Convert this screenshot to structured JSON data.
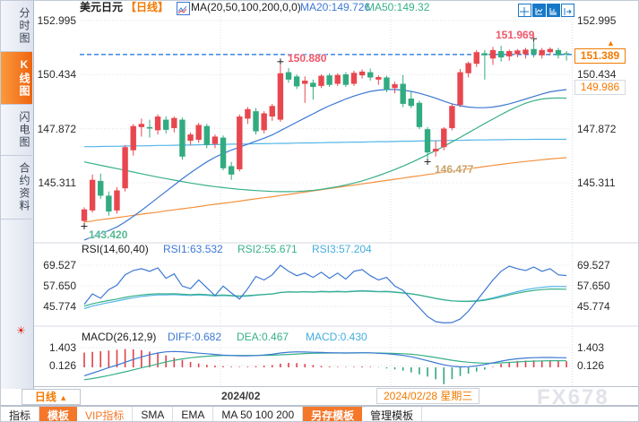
{
  "sidebar": {
    "items": [
      {
        "label": "分时图",
        "active": false
      },
      {
        "label": "K线图",
        "active": true
      },
      {
        "label": "闪电图",
        "active": false
      },
      {
        "label": "合约资料",
        "active": false
      }
    ],
    "alert_icon": "sun-icon"
  },
  "header": {
    "title": "美元日元",
    "period_tag": "【日线】",
    "ma_settings": "MA(20,50,100,200,0,0)",
    "ma20_label": "MA20:149.726",
    "ma50_label": "MA50:149.32",
    "icons": [
      "crosshair-icon",
      "zoom-axis-icon",
      "pane-chart-icon",
      "next-page-icon"
    ]
  },
  "sub_headers": {
    "rsi": {
      "title": "RSI(14,60,40)",
      "rsi1": "RSI1:63.532",
      "rsi2": "RSI2:55.671",
      "rsi3": "RSI3:57.204"
    },
    "macd": {
      "title": "MACD(26,12,9)",
      "diff": "DIFF:0.682",
      "dea": "DEA:0.467",
      "macd": "MACD:0.430"
    }
  },
  "price_tags": {
    "current": "151.389",
    "prev_close": "149.986"
  },
  "xaxis": {
    "period_label": "日线",
    "period_arrow": "▲",
    "month_label": "2024/02",
    "date_label": "2024/02/28 星期三"
  },
  "toolbar": {
    "items": [
      {
        "label": "指标",
        "style": "plain"
      },
      {
        "label": "模板",
        "style": "active"
      },
      {
        "label": "VIP指标",
        "style": "orange-text"
      },
      {
        "label": "SMA",
        "style": "plain"
      },
      {
        "label": "EMA",
        "style": "plain"
      },
      {
        "label": "MA 50 100 200",
        "style": "plain"
      },
      {
        "label": "另存模板",
        "style": "active"
      },
      {
        "label": "管理模板",
        "style": "plain"
      }
    ]
  },
  "watermark": "FX678",
  "colors": {
    "up": "#e8474f",
    "down": "#32ab80",
    "ma20": "#3c78d2",
    "ma50": "#38b088",
    "ma100": "#54b6e8",
    "ma200": "#f2913d",
    "current_line": "#2a7ede",
    "accent_orange": "#f27a00",
    "rsi1": "#3c78d2",
    "rsi2": "#38b088",
    "rsi3": "#54b6e8",
    "diff": "#3c78d2",
    "dea": "#38b088",
    "hist_up": "#e0404a",
    "hist_down": "#2fa97e"
  },
  "chart_data": {
    "type": "candlestick",
    "symbol": "美元日元",
    "interval": "日线",
    "legend": [
      "MA20",
      "MA50",
      "MA100",
      "MA200"
    ],
    "grid": {
      "main": [
        152.995,
        150.434,
        147.872,
        145.311
      ],
      "rsi": [
        69.527,
        57.65,
        45.774
      ],
      "macd": [
        1.403,
        0.126
      ]
    },
    "current_price": 151.389,
    "prev_close": 149.986,
    "markers": [
      {
        "index": 24,
        "type": "high",
        "label": "150.880"
      },
      {
        "index": 55,
        "type": "high",
        "label": "151.969"
      },
      {
        "index": 42,
        "type": "low",
        "label": "146.477"
      },
      {
        "index": 0,
        "type": "low",
        "label": "143.420"
      }
    ],
    "ohlc": [
      [
        143.5,
        144.15,
        143.42,
        144.05
      ],
      [
        144.0,
        145.7,
        143.9,
        145.45
      ],
      [
        145.4,
        145.75,
        144.55,
        144.7
      ],
      [
        144.7,
        144.9,
        143.75,
        143.95
      ],
      [
        144.0,
        145.1,
        143.85,
        144.95
      ],
      [
        145.05,
        147.1,
        144.9,
        147.0
      ],
      [
        146.85,
        148.1,
        146.6,
        148.0
      ],
      [
        147.95,
        148.35,
        147.5,
        148.1
      ],
      [
        147.95,
        148.3,
        147.45,
        147.88
      ],
      [
        147.8,
        148.55,
        147.6,
        148.45
      ],
      [
        148.3,
        148.45,
        147.65,
        147.82
      ],
      [
        147.9,
        148.45,
        147.7,
        148.38
      ],
      [
        148.3,
        148.4,
        146.4,
        146.55
      ],
      [
        147.3,
        147.7,
        147.1,
        147.6
      ],
      [
        147.35,
        148.15,
        147.2,
        148.05
      ],
      [
        148.0,
        148.1,
        146.95,
        147.1
      ],
      [
        147.15,
        147.6,
        146.95,
        147.5
      ],
      [
        147.45,
        147.55,
        145.9,
        146.0
      ],
      [
        146.1,
        146.3,
        145.45,
        145.7
      ],
      [
        145.95,
        148.55,
        145.85,
        148.45
      ],
      [
        148.35,
        148.9,
        148.1,
        148.8
      ],
      [
        148.7,
        148.85,
        147.6,
        147.75
      ],
      [
        147.8,
        148.7,
        147.65,
        148.6
      ],
      [
        148.45,
        149.05,
        148.25,
        148.95
      ],
      [
        148.3,
        150.88,
        148.2,
        150.5
      ],
      [
        150.55,
        150.75,
        150.05,
        150.2
      ],
      [
        150.35,
        150.45,
        149.75,
        149.88
      ],
      [
        150.0,
        150.35,
        149.1,
        150.15
      ],
      [
        150.05,
        150.2,
        149.25,
        149.85
      ],
      [
        149.9,
        150.45,
        149.8,
        150.38
      ],
      [
        150.4,
        150.5,
        149.85,
        149.95
      ],
      [
        150.0,
        150.5,
        149.9,
        150.42
      ],
      [
        150.45,
        150.55,
        149.85,
        149.95
      ],
      [
        150.0,
        150.62,
        149.9,
        150.52
      ],
      [
        150.4,
        150.68,
        150.25,
        150.58
      ],
      [
        150.55,
        150.72,
        150.15,
        150.3
      ],
      [
        150.2,
        150.4,
        149.95,
        150.32
      ],
      [
        150.3,
        150.38,
        149.6,
        149.72
      ],
      [
        149.8,
        150.1,
        149.55,
        149.98
      ],
      [
        150.0,
        150.42,
        148.9,
        149.05
      ],
      [
        149.3,
        149.65,
        148.85,
        148.95
      ],
      [
        149.1,
        149.2,
        147.85,
        147.95
      ],
      [
        147.85,
        147.95,
        146.477,
        146.75
      ],
      [
        146.8,
        147.3,
        146.55,
        146.92
      ],
      [
        147.0,
        147.95,
        146.85,
        147.88
      ],
      [
        147.9,
        149.05,
        147.8,
        148.95
      ],
      [
        149.0,
        150.7,
        148.9,
        150.55
      ],
      [
        150.5,
        151.05,
        150.3,
        150.98
      ],
      [
        150.95,
        151.6,
        150.8,
        151.5
      ],
      [
        151.45,
        151.6,
        150.2,
        151.35
      ],
      [
        151.2,
        151.75,
        150.9,
        151.6
      ],
      [
        151.55,
        151.8,
        151.05,
        151.25
      ],
      [
        151.3,
        151.62,
        151.1,
        151.55
      ],
      [
        151.4,
        151.65,
        151.25,
        151.58
      ],
      [
        151.4,
        151.7,
        151.2,
        151.62
      ],
      [
        151.65,
        151.969,
        151.25,
        151.4
      ],
      [
        151.35,
        151.7,
        151.2,
        151.6
      ],
      [
        151.5,
        151.72,
        151.35,
        151.65
      ],
      [
        151.6,
        151.7,
        151.2,
        151.35
      ],
      [
        151.45,
        151.55,
        151.1,
        151.389
      ]
    ],
    "ma20": [
      142.6,
      142.75,
      142.9,
      143.05,
      143.22,
      143.45,
      143.72,
      144.0,
      144.3,
      144.6,
      144.9,
      145.2,
      145.5,
      145.78,
      146.05,
      146.3,
      146.52,
      146.7,
      146.86,
      147.0,
      147.14,
      147.28,
      147.42,
      147.58,
      147.78,
      147.98,
      148.18,
      148.38,
      148.58,
      148.78,
      148.96,
      149.12,
      149.28,
      149.42,
      149.54,
      149.64,
      149.7,
      149.73,
      149.73,
      149.7,
      149.64,
      149.55,
      149.44,
      149.32,
      149.18,
      149.05,
      148.96,
      148.9,
      148.87,
      148.87,
      148.9,
      148.96,
      149.05,
      149.16,
      149.28,
      149.4,
      149.52,
      149.62,
      149.68,
      149.726
    ],
    "ma50": [
      146.3,
      146.22,
      146.14,
      146.06,
      145.98,
      145.9,
      145.82,
      145.74,
      145.66,
      145.58,
      145.51,
      145.44,
      145.37,
      145.3,
      145.24,
      145.18,
      145.13,
      145.08,
      145.04,
      145.0,
      144.97,
      144.94,
      144.92,
      144.9,
      144.89,
      144.89,
      144.9,
      144.92,
      144.95,
      145.0,
      145.06,
      145.13,
      145.21,
      145.3,
      145.4,
      145.52,
      145.65,
      145.79,
      145.94,
      146.1,
      146.27,
      146.45,
      146.64,
      146.84,
      147.04,
      147.25,
      147.46,
      147.68,
      147.9,
      148.12,
      148.33,
      148.54,
      148.74,
      148.92,
      149.08,
      149.2,
      149.28,
      149.32,
      149.33,
      149.32
    ],
    "ma100": [
      147.02,
      147.02,
      147.03,
      147.04,
      147.04,
      147.05,
      147.06,
      147.06,
      147.07,
      147.08,
      147.08,
      147.09,
      147.1,
      147.1,
      147.11,
      147.12,
      147.12,
      147.13,
      147.14,
      147.14,
      147.15,
      147.16,
      147.16,
      147.17,
      147.18,
      147.18,
      147.19,
      147.2,
      147.2,
      147.21,
      147.22,
      147.22,
      147.23,
      147.24,
      147.24,
      147.25,
      147.26,
      147.26,
      147.27,
      147.28,
      147.28,
      147.29,
      147.3,
      147.3,
      147.31,
      147.32,
      147.32,
      147.33,
      147.34,
      147.34,
      147.35,
      147.35,
      147.36,
      147.36,
      147.36,
      147.37,
      147.37,
      147.37,
      147.37,
      147.37
    ],
    "ma200": [
      143.45,
      143.5,
      143.56,
      143.61,
      143.66,
      143.71,
      143.77,
      143.82,
      143.87,
      143.92,
      143.98,
      144.03,
      144.08,
      144.13,
      144.18,
      144.24,
      144.29,
      144.34,
      144.39,
      144.44,
      144.5,
      144.55,
      144.6,
      144.65,
      144.71,
      144.76,
      144.82,
      144.87,
      144.93,
      144.98,
      145.04,
      145.09,
      145.15,
      145.2,
      145.26,
      145.31,
      145.37,
      145.42,
      145.48,
      145.53,
      145.59,
      145.64,
      145.7,
      145.75,
      145.81,
      145.86,
      145.92,
      145.97,
      146.03,
      146.08,
      146.13,
      146.18,
      146.23,
      146.28,
      146.32,
      146.36,
      146.4,
      146.44,
      146.47,
      146.5
    ],
    "rsi1": [
      47.0,
      53.0,
      50.5,
      55.5,
      58.0,
      64.0,
      66.5,
      67.5,
      66.0,
      68.0,
      62.0,
      64.5,
      57.5,
      56.0,
      61.0,
      56.5,
      52.0,
      57.5,
      53.5,
      50.0,
      56.0,
      63.0,
      61.0,
      64.0,
      69.5,
      66.0,
      63.5,
      65.0,
      62.5,
      65.5,
      62.0,
      65.0,
      61.5,
      66.0,
      67.0,
      63.5,
      61.0,
      62.5,
      57.5,
      55.0,
      50.0,
      45.0,
      40.0,
      37.0,
      36.3,
      36.5,
      38.5,
      43.0,
      49.0,
      55.0,
      61.0,
      66.0,
      69.0,
      67.5,
      66.5,
      68.5,
      66.0,
      67.5,
      64.0,
      63.532
    ],
    "rsi2": [
      46.0,
      47.3,
      48.3,
      49.2,
      50.0,
      51.0,
      51.8,
      52.4,
      52.8,
      53.1,
      53.0,
      53.1,
      52.8,
      52.6,
      52.8,
      52.6,
      52.2,
      52.4,
      52.1,
      51.8,
      52.0,
      52.4,
      52.7,
      53.0,
      53.8,
      54.1,
      54.0,
      54.2,
      54.0,
      54.3,
      54.1,
      54.3,
      54.1,
      54.4,
      54.6,
      54.4,
      54.2,
      54.3,
      53.9,
      53.5,
      53.0,
      52.3,
      51.4,
      50.4,
      49.6,
      49.0,
      48.7,
      48.6,
      48.8,
      49.3,
      50.2,
      51.3,
      52.4,
      53.4,
      54.3,
      55.0,
      55.5,
      55.8,
      55.8,
      55.671
    ],
    "rsi3": [
      44.5,
      46.0,
      47.0,
      48.0,
      48.9,
      49.9,
      50.8,
      51.5,
      52.0,
      52.4,
      52.4,
      52.6,
      52.3,
      52.1,
      52.4,
      52.2,
      51.8,
      52.0,
      51.8,
      51.5,
      51.7,
      52.2,
      52.6,
      52.9,
      53.8,
      54.2,
      54.1,
      54.3,
      54.1,
      54.5,
      54.3,
      54.5,
      54.3,
      54.6,
      54.9,
      54.7,
      54.4,
      54.5,
      54.1,
      53.7,
      53.1,
      52.3,
      51.3,
      50.3,
      49.5,
      49.0,
      48.8,
      48.8,
      49.1,
      49.7,
      50.7,
      51.9,
      53.1,
      54.3,
      55.4,
      56.2,
      56.8,
      57.2,
      57.3,
      57.204
    ],
    "macd_diff": [
      -0.6,
      -0.42,
      -0.22,
      -0.02,
      0.16,
      0.36,
      0.56,
      0.74,
      0.9,
      1.02,
      1.1,
      1.13,
      1.11,
      1.06,
      1.01,
      0.97,
      0.92,
      0.87,
      0.84,
      0.82,
      0.82,
      0.84,
      0.88,
      0.93,
      1.02,
      1.08,
      1.1,
      1.09,
      1.07,
      1.06,
      1.04,
      1.03,
      1.02,
      1.03,
      1.04,
      1.03,
      1.0,
      0.97,
      0.92,
      0.85,
      0.75,
      0.62,
      0.47,
      0.32,
      0.18,
      0.08,
      0.03,
      0.04,
      0.1,
      0.2,
      0.32,
      0.44,
      0.54,
      0.61,
      0.66,
      0.69,
      0.7,
      0.7,
      0.69,
      0.682
    ],
    "macd_dea": [
      -0.88,
      -0.8,
      -0.7,
      -0.58,
      -0.45,
      -0.32,
      -0.18,
      -0.04,
      0.1,
      0.24,
      0.38,
      0.5,
      0.6,
      0.68,
      0.74,
      0.79,
      0.82,
      0.84,
      0.85,
      0.85,
      0.85,
      0.85,
      0.85,
      0.86,
      0.89,
      0.92,
      0.95,
      0.98,
      1.0,
      1.01,
      1.02,
      1.02,
      1.02,
      1.02,
      1.03,
      1.03,
      1.02,
      1.01,
      0.99,
      0.97,
      0.93,
      0.87,
      0.79,
      0.7,
      0.6,
      0.5,
      0.42,
      0.36,
      0.32,
      0.3,
      0.3,
      0.32,
      0.35,
      0.38,
      0.42,
      0.44,
      0.46,
      0.47,
      0.47,
      0.467
    ],
    "macd_hist": [
      1.05,
      1.1,
      1.15,
      1.2,
      1.25,
      1.3,
      1.28,
      1.22,
      1.12,
      1.0,
      0.85,
      0.68,
      0.52,
      0.38,
      0.27,
      0.18,
      0.12,
      0.08,
      0.05,
      0.04,
      0.05,
      0.08,
      0.12,
      0.16,
      0.26,
      0.32,
      0.3,
      0.24,
      0.16,
      0.1,
      0.06,
      0.04,
      0.03,
      0.04,
      0.06,
      0.04,
      -0.02,
      -0.08,
      -0.14,
      -0.24,
      -0.36,
      -0.5,
      -0.66,
      -0.85,
      -1.2,
      -0.84,
      -0.62,
      -0.45,
      -0.3,
      -0.16,
      0.04,
      0.24,
      0.38,
      0.46,
      0.48,
      0.5,
      0.48,
      0.46,
      0.44,
      0.43
    ]
  }
}
